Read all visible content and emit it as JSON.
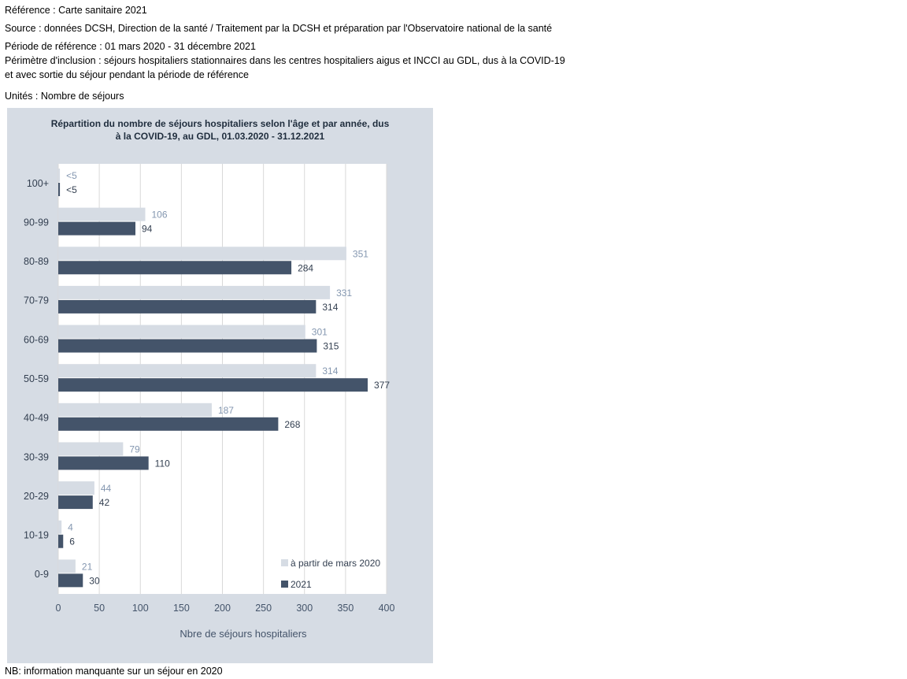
{
  "header": {
    "reference": "Référence : Carte sanitaire 2021",
    "source": "Source : données DCSH, Direction de la santé / Traitement par la DCSH et préparation par l'Observatoire national de la santé",
    "period": "Période de référence : 01 mars 2020 - 31 décembre 2021",
    "scope_line1": "Périmètre d'inclusion : séjours hospitaliers stationnaires dans les centres hospitaliers aigus et INCCI au GDL, dus à la COVID-19",
    "scope_line2": "et avec sortie du séjour pendant la période de référence",
    "units": "Unités : Nombre de séjours"
  },
  "footer": {
    "note": "NB: information manquante sur un séjour en 2020"
  },
  "colors": {
    "frame_bg": "#d6dce4",
    "plot_bg": "#ffffff",
    "series_2020": "#d6dce4",
    "series_2021": "#44546a",
    "label_2020": "#8497b0",
    "label_2021": "#333f50",
    "grid": "#d9d9d9"
  },
  "chart_data": {
    "type": "bar",
    "orientation": "horizontal",
    "title_line1": "Répartition du nombre de séjours hospitaliers selon l'âge et par année, dus",
    "title_line2": "à la COVID-19, au GDL, 01.03.2020 - 31.12.2021",
    "xlabel": "Nbre de séjours hospitaliers",
    "ylabel": "",
    "xlim": [
      0,
      400
    ],
    "xticks": [
      0,
      50,
      100,
      150,
      200,
      250,
      300,
      350,
      400
    ],
    "grid": true,
    "legend_position": "bottom-right",
    "categories": [
      "100+",
      "90-99",
      "80-89",
      "70-79",
      "60-69",
      "50-59",
      "40-49",
      "30-39",
      "20-29",
      "10-19",
      "0-9"
    ],
    "series": [
      {
        "name": "à partir de mars 2020",
        "values": [
          2,
          106,
          351,
          331,
          301,
          314,
          187,
          79,
          44,
          4,
          21
        ],
        "labels": [
          "<5",
          "106",
          "351",
          "331",
          "301",
          "314",
          "187",
          "79",
          "44",
          "4",
          "21"
        ]
      },
      {
        "name": "2021",
        "values": [
          2,
          94,
          284,
          314,
          315,
          377,
          268,
          110,
          42,
          6,
          30
        ],
        "labels": [
          "<5",
          "94",
          "284",
          "314",
          "315",
          "377",
          "268",
          "110",
          "42",
          "6",
          "30"
        ]
      }
    ]
  }
}
